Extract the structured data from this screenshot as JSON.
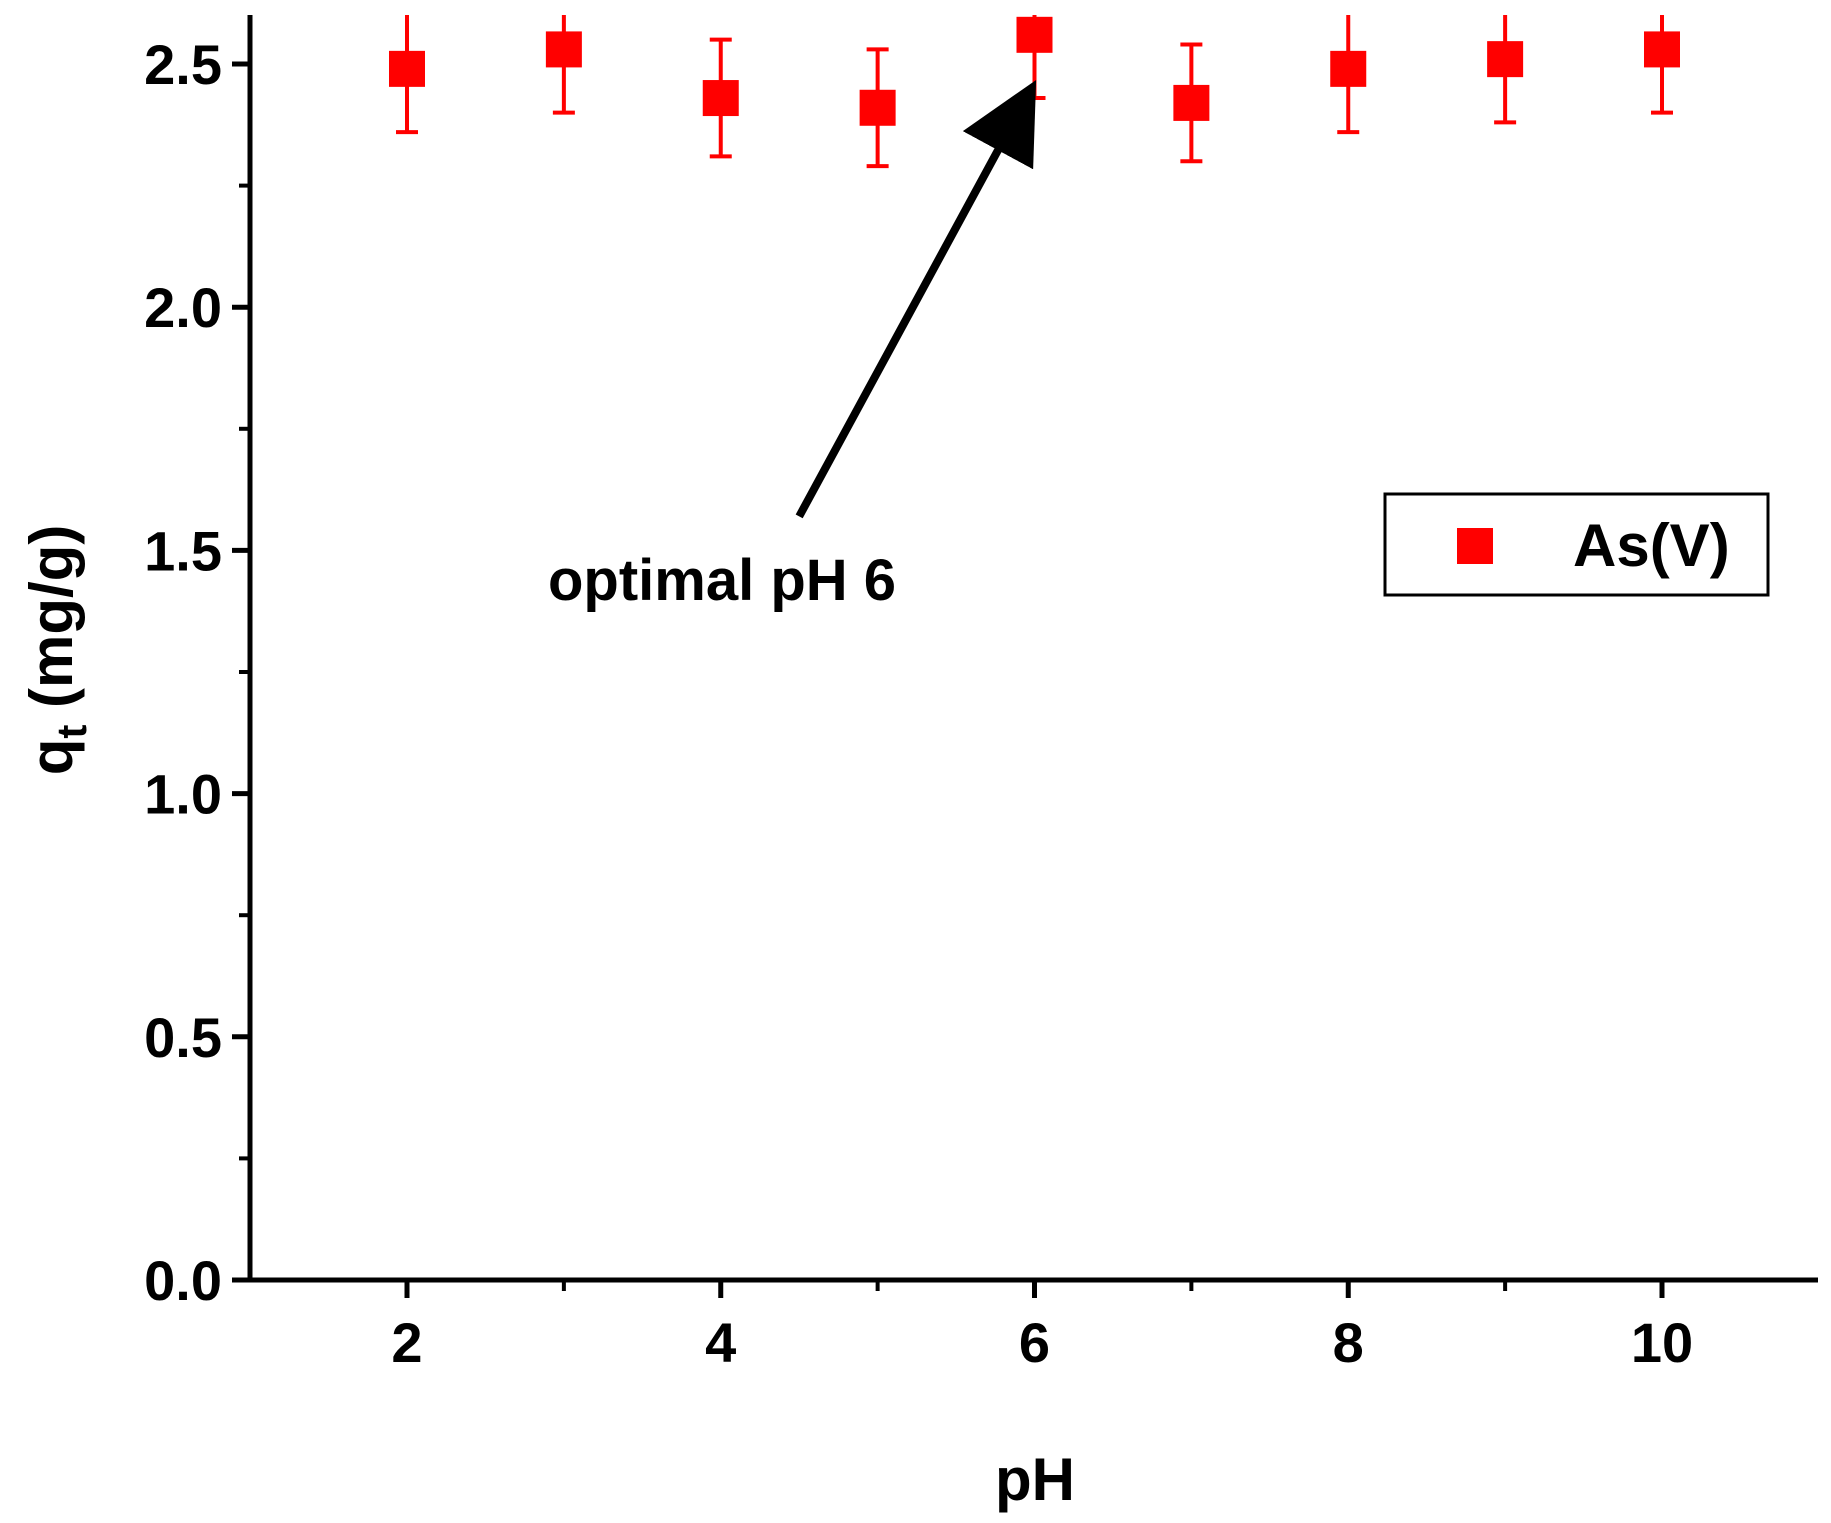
{
  "chart_data": {
    "type": "scatter",
    "title": "",
    "xlabel": "pH",
    "ylabel_main": "q",
    "ylabel_sub": "t",
    "ylabel_units": " (mg/g)",
    "xlim": [
      1,
      11
    ],
    "ylim": [
      0,
      2.6
    ],
    "xticks": [
      2,
      4,
      6,
      8,
      10
    ],
    "xtick_labels": [
      "2",
      "4",
      "6",
      "8",
      "10"
    ],
    "xminor": [
      3,
      5,
      7,
      9,
      11
    ],
    "yticks": [
      0,
      0.5,
      1.0,
      1.5,
      2.0,
      2.5
    ],
    "ytick_labels": [
      "0.0",
      "0.5",
      "1.0",
      "1.5",
      "2.0",
      "2.5"
    ],
    "yminor": [
      0.25,
      0.75,
      1.25,
      1.75,
      2.25
    ],
    "grid": false,
    "legend_position": "right",
    "series": [
      {
        "name": "As(V)",
        "color": "#ff0000",
        "marker": "square",
        "x": [
          2,
          3,
          4,
          5,
          6,
          7,
          8,
          9,
          10
        ],
        "y": [
          2.49,
          2.53,
          2.43,
          2.41,
          2.56,
          2.42,
          2.49,
          2.51,
          2.53
        ],
        "error": [
          0.13,
          0.13,
          0.12,
          0.12,
          0.13,
          0.12,
          0.13,
          0.13,
          0.13
        ]
      }
    ],
    "annotation": {
      "text": "optimal pH 6",
      "target": {
        "x": 6,
        "y": 2.5
      },
      "tail": {
        "x": 4.5,
        "y": 1.57
      }
    },
    "colors": {
      "axis": "#000000",
      "series": "#ff0000"
    }
  }
}
